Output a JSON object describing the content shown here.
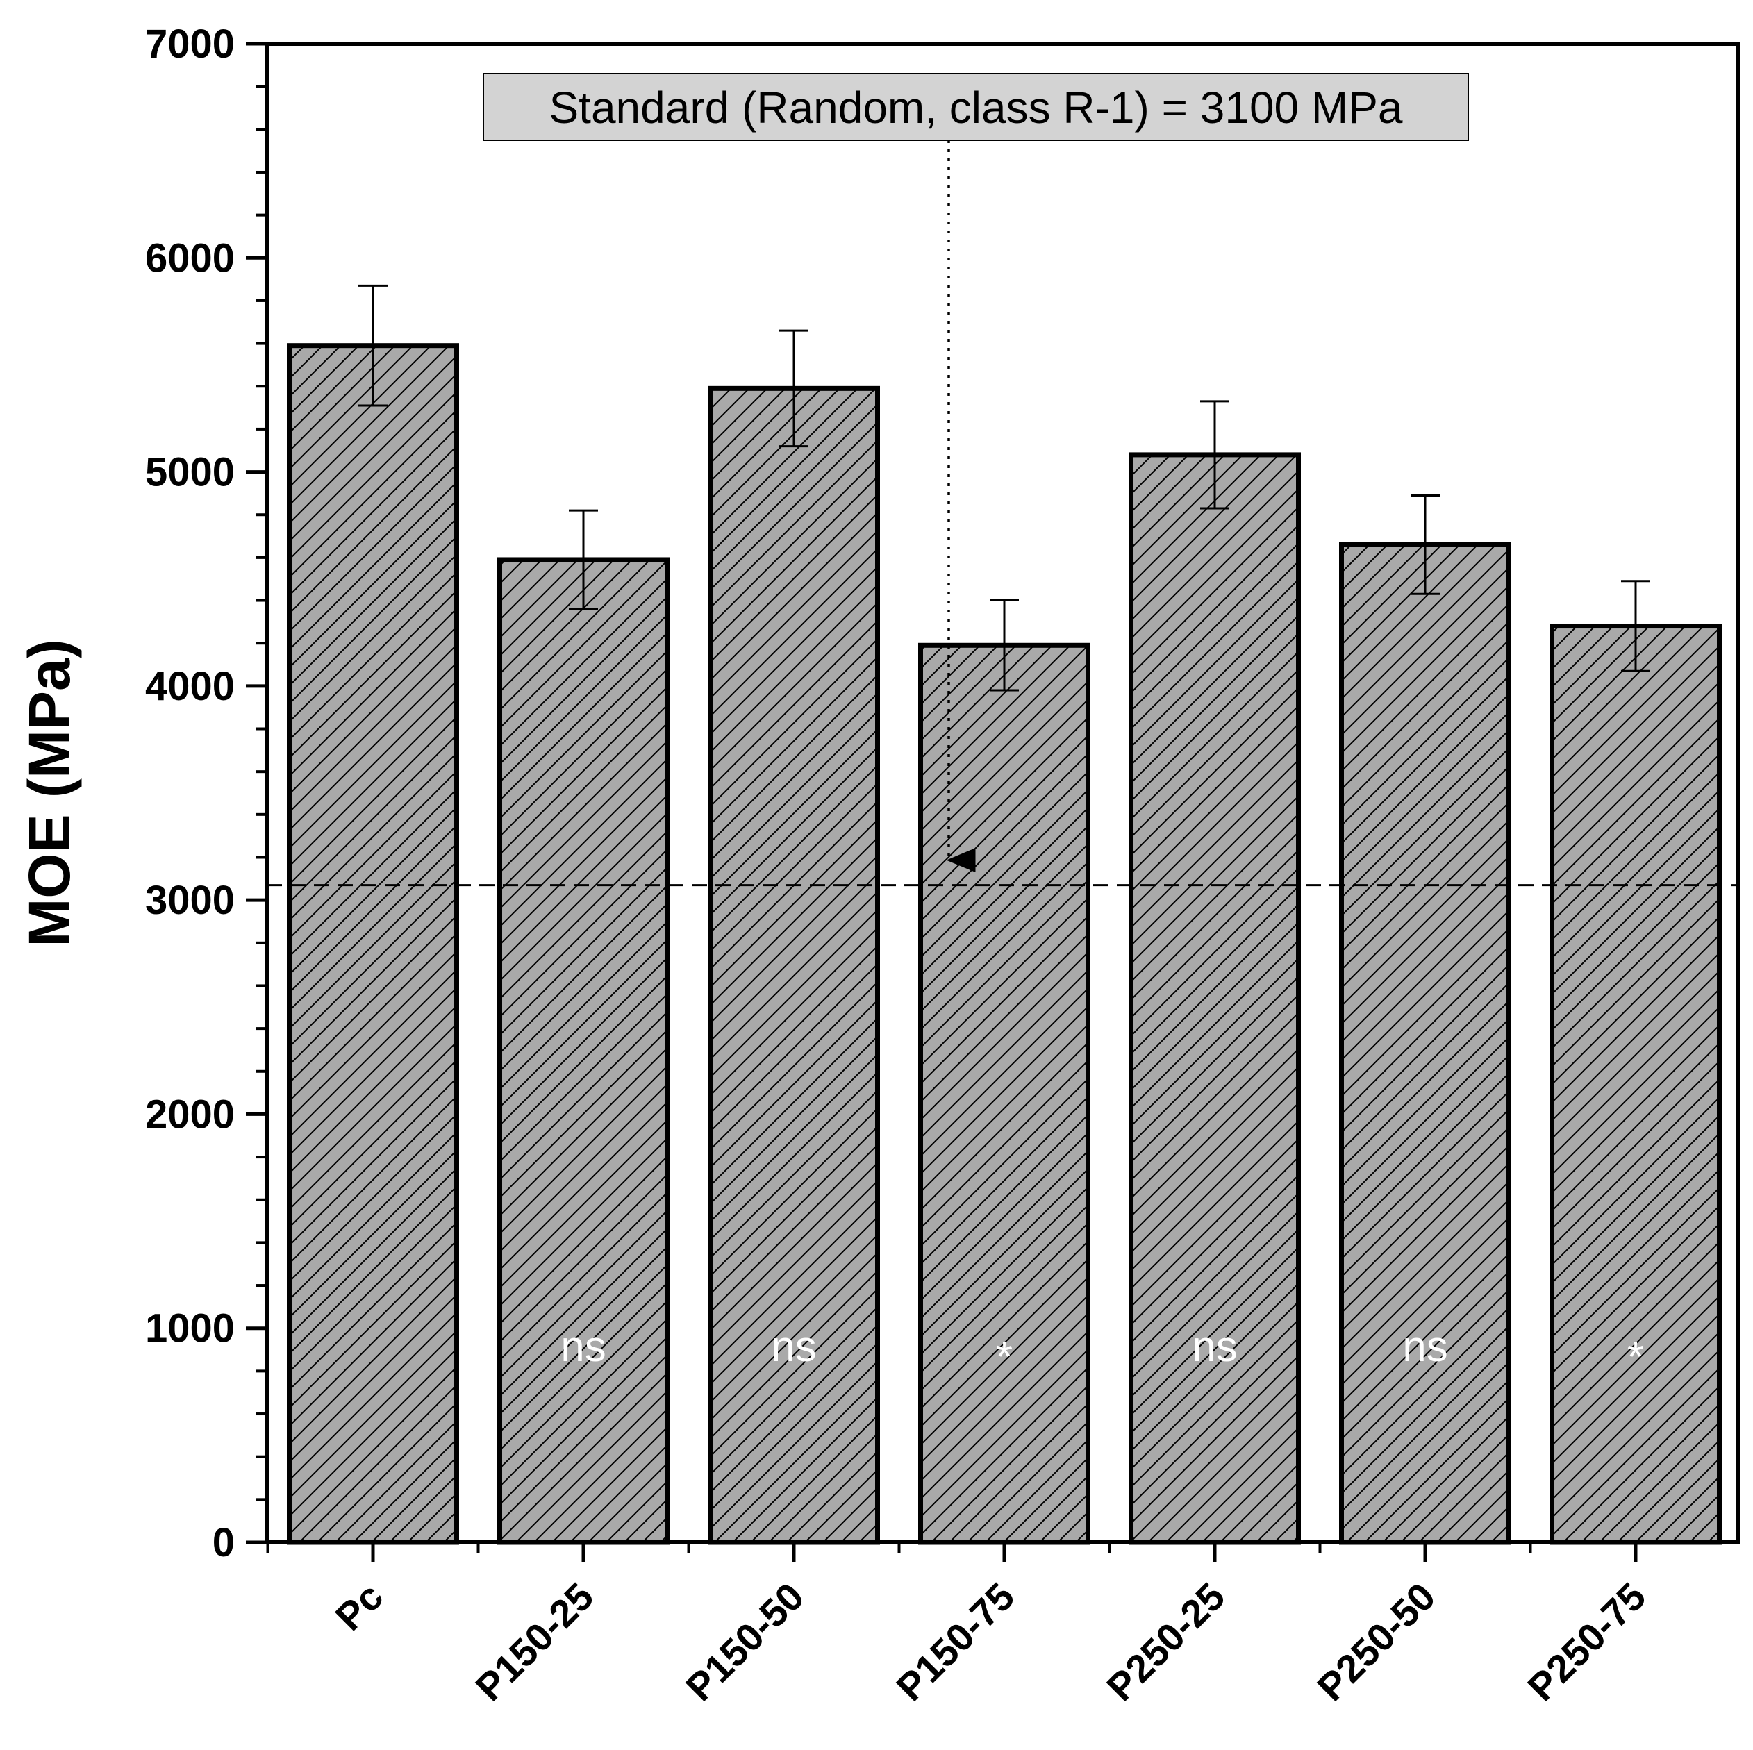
{
  "chart_data": {
    "type": "bar",
    "title": "",
    "xlabel": "",
    "ylabel": "MOE (MPa)",
    "ylim": [
      0,
      7000
    ],
    "yticks": [
      0,
      1000,
      2000,
      3000,
      4000,
      5000,
      6000,
      7000
    ],
    "categories": [
      "Pc",
      "P150-25",
      "P150-50",
      "P150-75",
      "P250-25",
      "P250-50",
      "P250-75"
    ],
    "values": [
      5590,
      4590,
      5390,
      4190,
      5080,
      4660,
      4280
    ],
    "errors": [
      280,
      230,
      270,
      210,
      250,
      230,
      210
    ],
    "significance": [
      "",
      "ns",
      "ns",
      "*",
      "ns",
      "ns",
      "*"
    ],
    "reference_line": {
      "value": 3070,
      "style": "dashed"
    },
    "annotation": {
      "text": "Standard (Random, class R-1) = 3100 MPa",
      "points_to": 3070
    },
    "bar_fill": "#a9a9a9",
    "bar_pattern": "diagonal-hatch",
    "grid": false,
    "legend": "none"
  }
}
